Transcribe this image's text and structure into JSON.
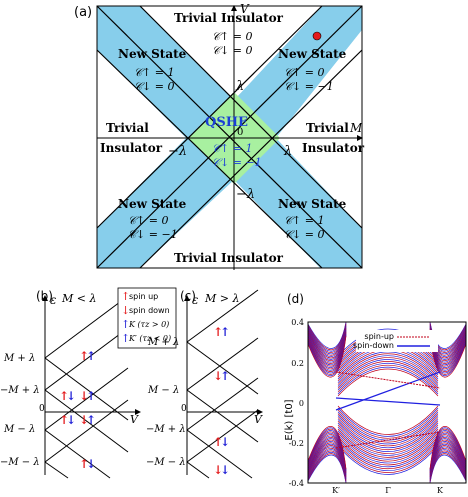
{
  "panel_a": {
    "label": "(a)",
    "axis_v": "V",
    "axis_m": "M",
    "origin": "0",
    "lambda": "λ",
    "neg_lambda": "−λ",
    "qshe": "QSHE",
    "qshe_c_up": "𝒞↑ = 1",
    "qshe_c_down": "𝒞↓ = −1",
    "trivial_top": "Trivial Insulator",
    "trivial_top_c_up": "𝒞↑ = 0",
    "trivial_top_c_down": "𝒞↓ = 0",
    "trivial_bottom": "Trivial Insulator",
    "trivial_left_1": "Trivial",
    "trivial_left_2": "Insulator",
    "trivial_right_1": "Trivial",
    "trivial_right_2": "Insulator",
    "ns_tl": {
      "title": "New State",
      "c_up": "𝒞↑ = 1",
      "c_down": "𝒞↓ = 0"
    },
    "ns_tr": {
      "title": "New State",
      "c_up": "𝒞↑ = 0",
      "c_down": "𝒞↓ = −1"
    },
    "ns_bl": {
      "title": "New State",
      "c_up": "𝒞↑ = 0",
      "c_down": "𝒞↓ = −1"
    },
    "ns_br": {
      "title": "New State",
      "c_up": "𝒞↑ = 1",
      "c_down": "𝒞↓ = 0"
    }
  },
  "panel_b": {
    "label": "(b)",
    "axis_eps": "ε",
    "cond": "M < λ",
    "axis_v": "V",
    "origin": "0",
    "ylabels": [
      "M + λ",
      "−M + λ",
      "M − λ",
      "−M − λ"
    ]
  },
  "panel_c": {
    "label": "(c)",
    "axis_eps": "ε",
    "cond": "M > λ",
    "axis_v": "V",
    "origin": "0",
    "ylabels": [
      "M + λ",
      "−M + λ",
      "M − λ",
      "−M − λ"
    ]
  },
  "legend": {
    "spin_up": "spin up",
    "spin_down": "spin down",
    "k_plus": "K (τz > 0)",
    "k_minus": "K′ (τz < 0)"
  },
  "panel_d": {
    "label": "(d)",
    "ylabel": "E(k) [t0]",
    "yticks": [
      "0.4",
      "0.2",
      "0",
      "-0.2",
      "-0.4"
    ],
    "xticks": [
      "K′",
      "Γ",
      "K"
    ],
    "legend_up": "spin-up",
    "legend_down": "spin-down"
  },
  "colors": {
    "light_blue": "#87CEEB",
    "light_green": "#90EE90",
    "red": "#e41a1c",
    "blue": "#1f1fd6",
    "qshe_blue": "#1a3fd6",
    "band_blue": "#2020e0",
    "band_red": "#c0001a"
  }
}
